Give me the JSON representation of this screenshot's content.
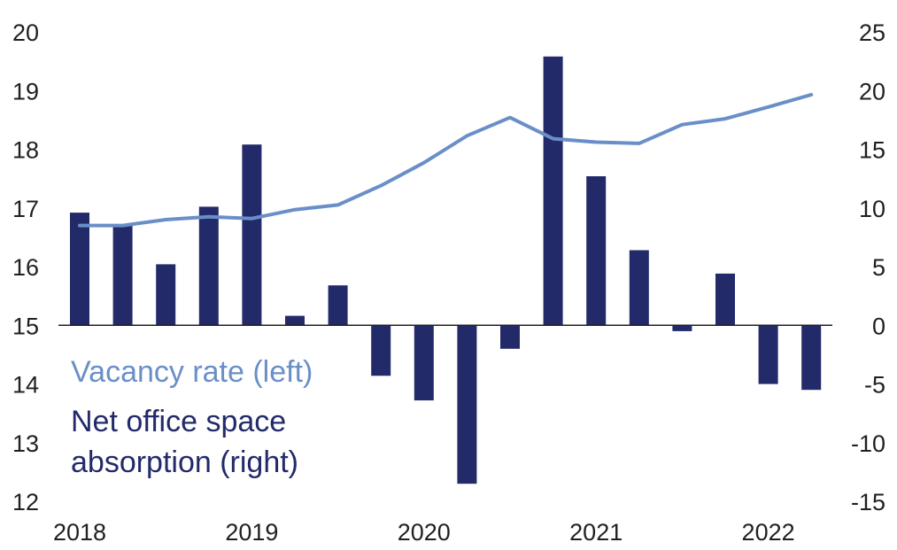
{
  "chart_data": {
    "type": "bar",
    "x_tick_labels": [
      "2018",
      "2019",
      "2020",
      "2021",
      "2022"
    ],
    "left_axis": {
      "ylim": [
        12,
        20
      ],
      "ticks": [
        "20",
        "19",
        "18",
        "17",
        "16",
        "15",
        "14",
        "13",
        "12"
      ]
    },
    "right_axis": {
      "ylim": [
        -15,
        25
      ],
      "ticks": [
        "25",
        "20",
        "15",
        "10",
        "5",
        "0",
        "-5",
        "-10",
        "-15"
      ]
    },
    "grid": false,
    "legend_placement": "bottom-left",
    "series": [
      {
        "name": "Net office space absorption (right)",
        "type": "bar",
        "axis": "right",
        "color": "#232a69",
        "x": [
          "2018 Q1",
          "2018 Q2",
          "2018 Q3",
          "2018 Q4",
          "2019 Q1",
          "2019 Q2",
          "2019 Q3",
          "2019 Q4",
          "2020 Q1",
          "2020 Q2",
          "2020 Q3",
          "2020 Q4",
          "2021 Q1",
          "2021 Q2",
          "2021 Q3",
          "2021 Q4",
          "2022 Q1",
          "2022 Q2"
        ],
        "values": [
          9.6,
          8.5,
          5.2,
          10.1,
          15.4,
          0.8,
          3.4,
          -4.3,
          -6.4,
          -13.5,
          -2.0,
          22.9,
          12.7,
          6.4,
          -0.5,
          4.4,
          -5.0,
          -5.5
        ]
      },
      {
        "name": "Vacancy rate (left)",
        "type": "line",
        "axis": "left",
        "color": "#6a8fc8",
        "x": [
          "2018 Q1",
          "2018 Q2",
          "2018 Q3",
          "2018 Q4",
          "2019 Q1",
          "2019 Q2",
          "2019 Q3",
          "2019 Q4",
          "2020 Q1",
          "2020 Q2",
          "2020 Q3",
          "2020 Q4",
          "2021 Q1",
          "2021 Q2",
          "2021 Q3",
          "2021 Q4",
          "2022 Q1",
          "2022 Q2"
        ],
        "values": [
          16.7,
          16.7,
          16.8,
          16.85,
          16.82,
          16.97,
          17.05,
          17.38,
          17.77,
          18.23,
          18.54,
          18.18,
          18.12,
          18.1,
          18.42,
          18.52,
          18.72,
          18.93
        ]
      }
    ]
  }
}
